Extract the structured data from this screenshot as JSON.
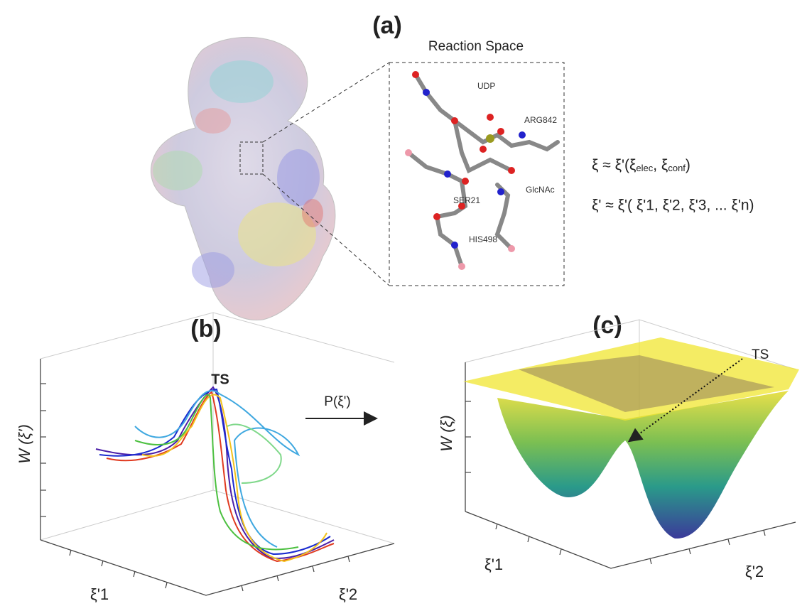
{
  "panel_a": {
    "label": "(a)",
    "inset_title": "Reaction Space",
    "residues": [
      "UDP",
      "ARG842",
      "GlcNAc",
      "SER21",
      "HIS498"
    ],
    "equation_1": {
      "lhs": "ξ ≈ ξ'(ξ",
      "sub_1": "elec",
      "mid": ", ξ",
      "sub_2": "conf",
      "rhs": ")"
    },
    "equation_2": "ξ' ≈  ξ'( ξ'1,  ξ'2,  ξ'3, ... ξ'n)"
  },
  "panel_b": {
    "label": "(b)",
    "ts_label": "TS",
    "y_axis_label": "W (ξ')",
    "x_axis_label": "ξ'1",
    "z_axis_label": "ξ'2"
  },
  "arrow_label": "P(ξ')",
  "panel_c": {
    "label": "(c)",
    "ts_label": "TS",
    "y_axis_label": "W (ξ)",
    "x_axis_label": "ξ'1",
    "z_axis_label": "ξ'2"
  }
}
